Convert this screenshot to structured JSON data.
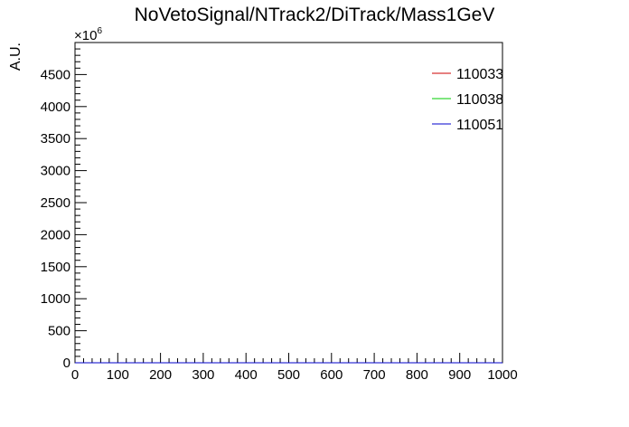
{
  "chart_data": {
    "type": "line",
    "title": "NoVetoSignal/NTrack2/DiTrack/Mass1GeV",
    "xlabel": "",
    "ylabel": "A.U.",
    "exponent_base": "×10",
    "exponent_power": "6",
    "xlim": [
      0,
      1000
    ],
    "ylim": [
      0,
      5000
    ],
    "x_major_ticks": [
      0,
      100,
      200,
      300,
      400,
      500,
      600,
      700,
      800,
      900,
      1000
    ],
    "x_tick_labels": [
      "0",
      "100",
      "200",
      "300",
      "400",
      "500",
      "600",
      "700",
      "800",
      "900",
      "1000"
    ],
    "y_major_ticks": [
      0,
      500,
      1000,
      1500,
      2000,
      2500,
      3000,
      3500,
      4000,
      4500
    ],
    "y_tick_labels": [
      "0",
      "500",
      "1000",
      "1500",
      "2000",
      "2500",
      "3000",
      "3500",
      "4000",
      "4500"
    ],
    "grid": false,
    "legend_position": "top-right",
    "series": [
      {
        "name": "110033",
        "color": "#cc0000",
        "x": [
          0,
          1000
        ],
        "y": [
          0,
          0
        ]
      },
      {
        "name": "110038",
        "color": "#00cc00",
        "x": [
          0,
          1000
        ],
        "y": [
          0,
          0
        ]
      },
      {
        "name": "110051",
        "color": "#0000cc",
        "x": [
          0,
          1000
        ],
        "y": [
          0,
          0
        ]
      }
    ]
  }
}
